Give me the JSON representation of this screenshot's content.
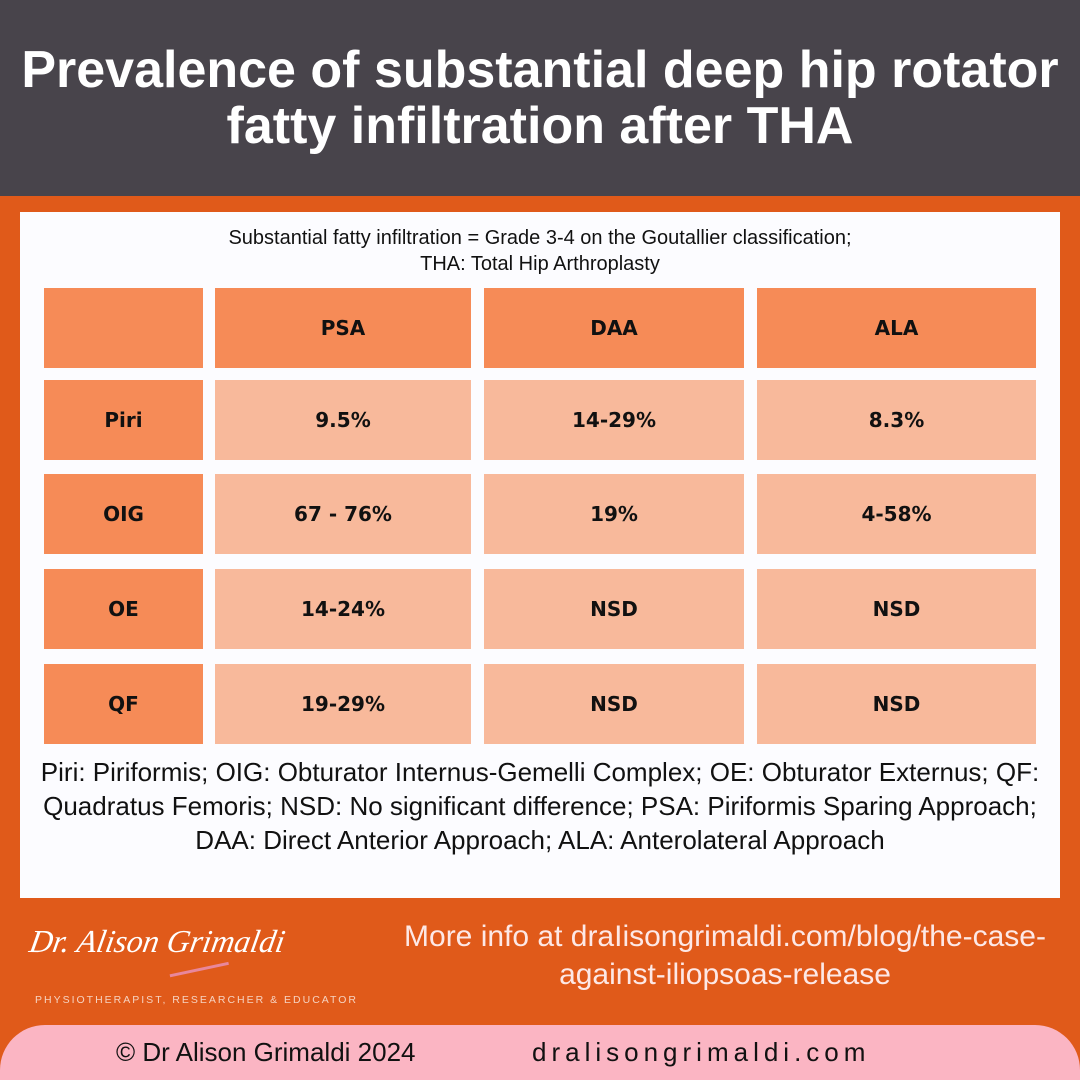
{
  "header": {
    "title": "Prevalence of substantial deep hip rotator fatty infiltration after THA"
  },
  "panel": {
    "subtitle_line1": "Substantial fatty infiltration = Grade 3-4 on the Goutallier classification;",
    "subtitle_line2": "THA: Total Hip Arthroplasty"
  },
  "table": {
    "columns": [
      "",
      "PSA",
      "DAA",
      "ALA"
    ],
    "rows": [
      {
        "label": "Piri",
        "values": [
          "9.5%",
          "14-29%",
          "8.3%"
        ]
      },
      {
        "label": "OIG",
        "values": [
          "67 - 76%",
          "19%",
          "4-58%"
        ]
      },
      {
        "label": "OE",
        "values": [
          "14-24%",
          "NSD",
          "NSD"
        ]
      },
      {
        "label": "QF",
        "values": [
          "19-29%",
          "NSD",
          "NSD"
        ]
      }
    ]
  },
  "legend": "Piri: Piriformis; OIG: Obturator Internus-Gemelli Complex; OE: Obturator Externus; QF: Quadratus Femoris; NSD: No significant difference; PSA: Piriformis Sparing Approach; DAA: Direct Anterior Approach; ALA: Anterolateral Approach",
  "logo": {
    "name": "Dr. Alison Grimaldi",
    "tagline": "PHYSIOTHERAPIST, RESEARCHER & EDUCATOR"
  },
  "more_info": "More info at draIisongrimaldi.com/blog/the-case-against-iliopsoas-release",
  "footer": {
    "copyright": "© Dr Alison Grimaldi 2024",
    "site": "dralisongrimaldi.com"
  },
  "colors": {
    "header": "#48444b",
    "background": "#e05a1a",
    "header_cell": "#f68b57",
    "value_cell": "#f8b99b",
    "footer": "#fbb5c3"
  }
}
